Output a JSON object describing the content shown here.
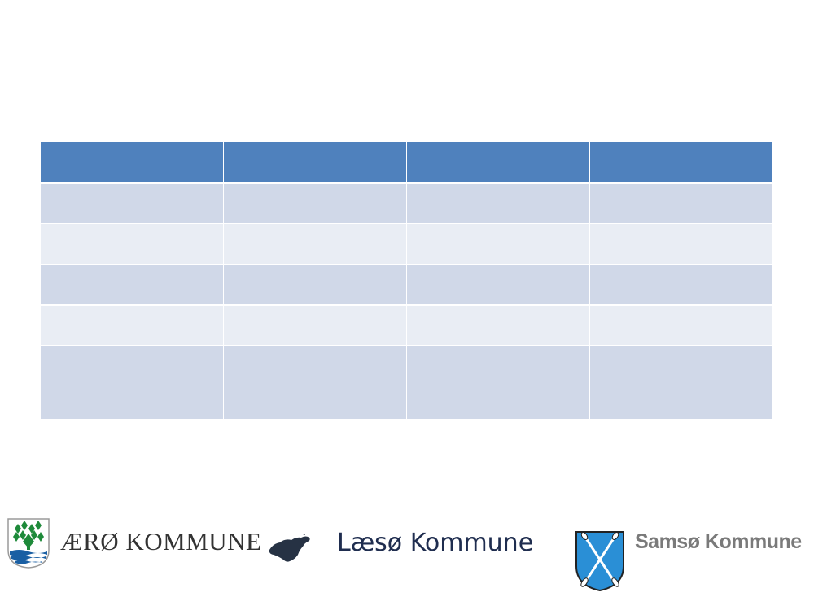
{
  "table": {
    "header": [
      "",
      "",
      "",
      ""
    ],
    "rows": [
      [
        "",
        "",
        "",
        ""
      ],
      [
        "",
        "",
        "",
        ""
      ],
      [
        "",
        "",
        "",
        ""
      ],
      [
        "",
        "",
        "",
        ""
      ],
      [
        "",
        "",
        "",
        ""
      ]
    ]
  },
  "colors": {
    "header": "#4f81bd",
    "row_dark": "#d0d8e8",
    "row_light": "#e9edf4"
  },
  "logos": {
    "aero": {
      "text": "ÆRØ KOMMUNE",
      "icon": "aero-crest-icon"
    },
    "laeso": {
      "text": "Læsø Kommune",
      "icon": "laeso-island-icon"
    },
    "samso": {
      "text": "Samsø Kommune",
      "icon": "samso-shield-icon"
    }
  }
}
